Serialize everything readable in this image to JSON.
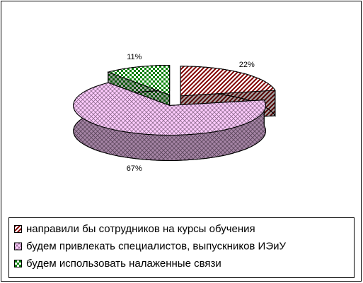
{
  "chart_data": {
    "type": "pie3d",
    "categories": [
      "направили бы сотрудников на курсы обучения",
      "будем привлекать специалистов, выпускников ИЭиУ",
      "будем использовать налаженные связи"
    ],
    "values": [
      22,
      67,
      11
    ],
    "value_labels": [
      "22%",
      "67%",
      "11%"
    ],
    "colors": [
      "#800000",
      "#ffccff",
      "#008000"
    ],
    "legend": "bottom"
  }
}
